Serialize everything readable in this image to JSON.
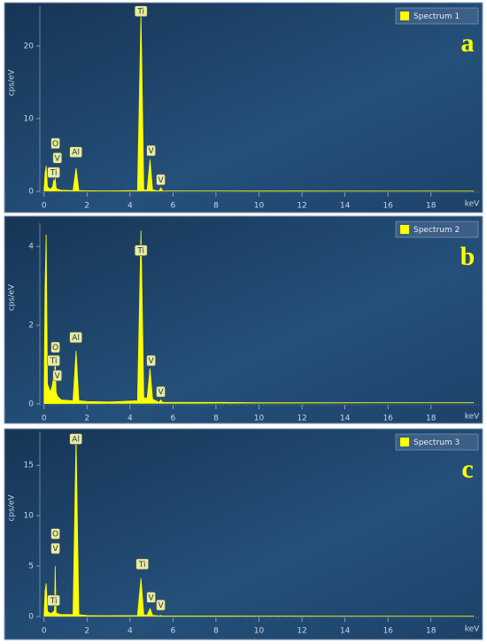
{
  "chart_data": [
    {
      "type": "area",
      "panel_label": "a",
      "ylabel": "cps/eV",
      "xlabel": "keV",
      "xlim": [
        -0.4,
        20.4
      ],
      "xticks": [
        0,
        2,
        4,
        6,
        8,
        10,
        12,
        14,
        16,
        18
      ],
      "ylim": [
        0,
        25
      ],
      "yticks": [
        0,
        10,
        20
      ],
      "x": [
        0,
        0.05,
        0.1,
        0.16,
        0.3,
        0.4,
        0.45,
        0.49,
        0.52,
        0.56,
        0.62,
        0.8,
        1.35,
        1.49,
        1.62,
        2,
        3,
        4.35,
        4.51,
        4.64,
        4.8,
        4.93,
        5.05,
        5.35,
        5.43,
        5.52,
        6,
        8,
        10,
        12,
        14,
        16,
        18,
        20
      ],
      "series": [
        {
          "name": "Spectrum 1",
          "color": "#ffff00",
          "values": [
            0,
            2.5,
            3.5,
            0.6,
            0.3,
            0.6,
            1.5,
            1.2,
            1.8,
            0.5,
            0.3,
            0.15,
            0.1,
            3.2,
            0.1,
            0.08,
            0.06,
            0.1,
            24.5,
            0.2,
            0.2,
            4.4,
            0.2,
            0.05,
            0.5,
            0.05,
            0.05,
            0.05,
            0.04,
            0.04,
            0.03,
            0.03,
            0.03,
            0.03
          ]
        }
      ],
      "annotations": [
        {
          "text": "Ti",
          "x": 4.51,
          "y": 24.8
        },
        {
          "text": "O",
          "x": 0.53,
          "y": 6.6
        },
        {
          "text": "Ti",
          "x": 0.45,
          "y": 2.6
        },
        {
          "text": "V",
          "x": 0.62,
          "y": 4.6
        },
        {
          "text": "Al",
          "x": 1.48,
          "y": 5.4
        },
        {
          "text": "V",
          "x": 4.98,
          "y": 5.6
        },
        {
          "text": "V",
          "x": 5.43,
          "y": 1.6
        }
      ]
    },
    {
      "type": "area",
      "panel_label": "b",
      "ylabel": "cps/eV",
      "xlabel": "keV",
      "xlim": [
        -0.4,
        20.4
      ],
      "xticks": [
        0,
        2,
        4,
        6,
        8,
        10,
        12,
        14,
        16,
        18
      ],
      "ylim": [
        0,
        4.5
      ],
      "yticks": [
        0,
        2,
        4
      ],
      "x": [
        0,
        0.05,
        0.1,
        0.16,
        0.3,
        0.4,
        0.45,
        0.49,
        0.52,
        0.56,
        0.62,
        0.8,
        1.35,
        1.49,
        1.62,
        2,
        3,
        4.35,
        4.51,
        4.64,
        4.8,
        4.93,
        5.05,
        5.35,
        5.43,
        5.52,
        6,
        8,
        10,
        12,
        14,
        16,
        18,
        20
      ],
      "series": [
        {
          "name": "Spectrum 2",
          "color": "#ffff00",
          "values": [
            0,
            3,
            4.3,
            0.5,
            0.3,
            0.5,
            0.8,
            0.6,
            1.2,
            0.3,
            0.2,
            0.1,
            0.08,
            1.35,
            0.08,
            0.06,
            0.05,
            0.08,
            4.4,
            0.15,
            0.15,
            0.9,
            0.12,
            0.04,
            0.1,
            0.04,
            0.04,
            0.04,
            0.03,
            0.03,
            0.03,
            0.03,
            0.03,
            0.03
          ]
        }
      ],
      "annotations": [
        {
          "text": "Ti",
          "x": 4.51,
          "y": 3.9
        },
        {
          "text": "O",
          "x": 0.53,
          "y": 1.44
        },
        {
          "text": "Ti",
          "x": 0.45,
          "y": 1.1
        },
        {
          "text": "V",
          "x": 0.62,
          "y": 0.72
        },
        {
          "text": "Al",
          "x": 1.48,
          "y": 1.69
        },
        {
          "text": "V",
          "x": 4.98,
          "y": 1.1
        },
        {
          "text": "V",
          "x": 5.43,
          "y": 0.31
        }
      ]
    },
    {
      "type": "area",
      "panel_label": "c",
      "ylabel": "cps/eV",
      "xlabel": "keV",
      "xlim": [
        -0.4,
        20.4
      ],
      "xticks": [
        0,
        2,
        4,
        6,
        8,
        10,
        12,
        14,
        16,
        18
      ],
      "ylim": [
        0,
        18
      ],
      "yticks": [
        0,
        5,
        10,
        15
      ],
      "x": [
        0,
        0.05,
        0.1,
        0.16,
        0.3,
        0.4,
        0.45,
        0.49,
        0.52,
        0.56,
        0.62,
        0.8,
        1.35,
        1.49,
        1.62,
        2,
        3,
        4.35,
        4.51,
        4.64,
        4.8,
        4.93,
        5.05,
        5.35,
        5.43,
        5.52,
        6,
        8,
        10,
        12,
        14,
        16,
        18,
        20
      ],
      "series": [
        {
          "name": "Spectrum 3",
          "color": "#ffff00",
          "values": [
            0,
            2.5,
            3.3,
            0.5,
            0.3,
            0.4,
            0.5,
            0.6,
            5,
            0.4,
            0.3,
            0.2,
            0.2,
            17.8,
            0.2,
            0.1,
            0.08,
            0.1,
            3.8,
            0.15,
            0.15,
            0.8,
            0.12,
            0.05,
            0.1,
            0.05,
            0.05,
            0.05,
            0.04,
            0.04,
            0.03,
            0.03,
            0.03,
            0.03
          ]
        }
      ],
      "annotations": [
        {
          "text": "Al",
          "x": 1.48,
          "y": 17.6
        },
        {
          "text": "O",
          "x": 0.53,
          "y": 8.2
        },
        {
          "text": "V",
          "x": 0.53,
          "y": 6.75
        },
        {
          "text": "Ti",
          "x": 0.45,
          "y": 1.6
        },
        {
          "text": "Ti",
          "x": 4.57,
          "y": 5.2
        },
        {
          "text": "V",
          "x": 4.98,
          "y": 1.9
        },
        {
          "text": "V",
          "x": 5.43,
          "y": 1.14
        }
      ]
    }
  ]
}
